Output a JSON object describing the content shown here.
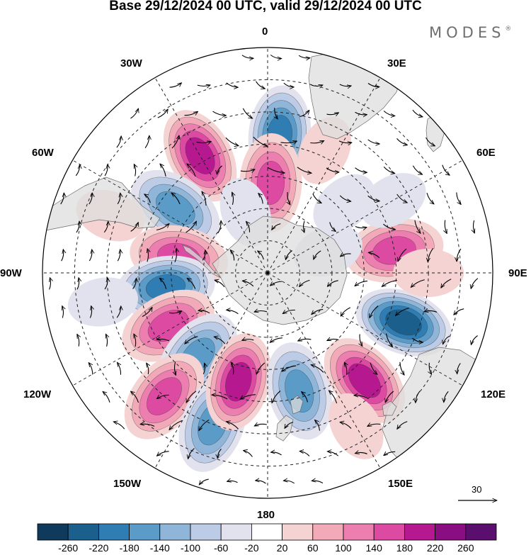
{
  "title": "Base 29/12/2024 00 UTC, valid 29/12/2024 00 UTC",
  "brand": "MODES",
  "brand_mark": "®",
  "meridian_labels": {
    "top": "0",
    "bottom": "180",
    "left": "90W",
    "right": "90E",
    "upper_left_30": "30W",
    "upper_right_30": "30E",
    "upper_left_60": "60W",
    "upper_right_60": "60E",
    "lower_left_120": "120W",
    "lower_right_120": "120E",
    "lower_left_150": "150W",
    "lower_right_150": "150E"
  },
  "vector_reference": "30",
  "colorbar": {
    "ticks": [
      "-260",
      "-220",
      "-180",
      "-140",
      "-100",
      "-60",
      "-20",
      "20",
      "60",
      "100",
      "140",
      "180",
      "220",
      "260"
    ],
    "colors": [
      "#103a5c",
      "#1b5f8c",
      "#2f7db2",
      "#5b9bc8",
      "#8fb6d9",
      "#bccbe6",
      "#e2e2ee",
      "#ffffff",
      "#f6d3d3",
      "#f2aab9",
      "#ec7eb0",
      "#dc4aa2",
      "#b5188f",
      "#8a0e82",
      "#5a0f6e"
    ]
  },
  "anomalies": [
    {
      "lat": -47,
      "lon": 5,
      "v": -200
    },
    {
      "lat": -48,
      "lon": -30,
      "v": 180
    },
    {
      "lat": -62,
      "lon": 2,
      "v": 160
    },
    {
      "lat": -55,
      "lon": -55,
      "v": -150
    },
    {
      "lat": -62,
      "lon": -80,
      "v": 170
    },
    {
      "lat": -58,
      "lon": -98,
      "v": -190
    },
    {
      "lat": -55,
      "lon": -118,
      "v": 150
    },
    {
      "lat": -56,
      "lon": -140,
      "v": -170
    },
    {
      "lat": -40,
      "lon": -140,
      "v": 160
    },
    {
      "lat": -40,
      "lon": -160,
      "v": -150
    },
    {
      "lat": -55,
      "lon": -165,
      "v": 180
    },
    {
      "lat": -52,
      "lon": 165,
      "v": -140
    },
    {
      "lat": -45,
      "lon": 138,
      "v": 200
    },
    {
      "lat": -45,
      "lon": 110,
      "v": -230
    },
    {
      "lat": -50,
      "lon": 80,
      "v": 150
    },
    {
      "lat": -48,
      "lon": 25,
      "v": 50
    },
    {
      "lat": -70,
      "lon": 70,
      "v": -40
    },
    {
      "lat": -58,
      "lon": 48,
      "v": -50
    },
    {
      "lat": -45,
      "lon": 60,
      "v": -40
    },
    {
      "lat": -40,
      "lon": 90,
      "v": 40
    },
    {
      "lat": -38,
      "lon": -100,
      "v": -30
    },
    {
      "lat": -38,
      "lon": -70,
      "v": 30
    },
    {
      "lat": -70,
      "lon": -20,
      "v": -20
    },
    {
      "lat": -35,
      "lon": 150,
      "v": 30
    }
  ]
}
